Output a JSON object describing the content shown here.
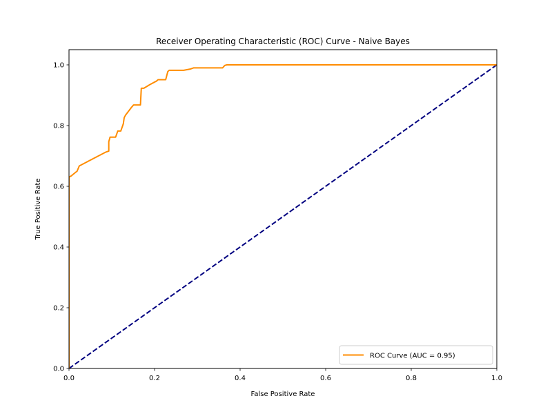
{
  "chart_data": {
    "type": "line",
    "title": "Receiver Operating Characteristic (ROC) Curve - Naive Bayes",
    "xlabel": "False Positive Rate",
    "ylabel": "True Positive Rate",
    "xlim": [
      0.0,
      1.0
    ],
    "ylim": [
      0.0,
      1.05
    ],
    "x_ticks": [
      "0.0",
      "0.2",
      "0.4",
      "0.6",
      "0.8",
      "1.0"
    ],
    "y_ticks": [
      "0.0",
      "0.2",
      "0.4",
      "0.6",
      "0.8",
      "1.0"
    ],
    "grid": false,
    "legend_position": "lower right",
    "series": [
      {
        "name": "ROC Curve (AUC = 0.95)",
        "color": "#ff8c00",
        "line_style": "solid",
        "x": [
          0.0,
          0.0,
          0.0,
          0.0,
          0.0,
          0.0,
          0.005,
          0.012,
          0.019,
          0.024,
          0.085,
          0.093,
          0.093,
          0.096,
          0.102,
          0.109,
          0.114,
          0.119,
          0.121,
          0.127,
          0.129,
          0.132,
          0.146,
          0.151,
          0.153,
          0.167,
          0.169,
          0.175,
          0.189,
          0.205,
          0.208,
          0.226,
          0.231,
          0.234,
          0.268,
          0.283,
          0.291,
          0.299,
          0.313,
          0.359,
          0.364,
          0.369,
          1.0
        ],
        "y": [
          0.0,
          0.2,
          0.4,
          0.52,
          0.61,
          0.63,
          0.634,
          0.642,
          0.65,
          0.667,
          0.712,
          0.716,
          0.747,
          0.762,
          0.762,
          0.762,
          0.782,
          0.782,
          0.782,
          0.806,
          0.826,
          0.834,
          0.86,
          0.868,
          0.868,
          0.868,
          0.923,
          0.923,
          0.935,
          0.947,
          0.951,
          0.951,
          0.978,
          0.982,
          0.982,
          0.986,
          0.99,
          0.99,
          0.99,
          0.99,
          0.998,
          1.0,
          1.0
        ]
      },
      {
        "name": "",
        "color": "#000080",
        "line_style": "dashed",
        "x": [
          0.0,
          1.0
        ],
        "y": [
          0.0,
          1.0
        ]
      }
    ]
  }
}
